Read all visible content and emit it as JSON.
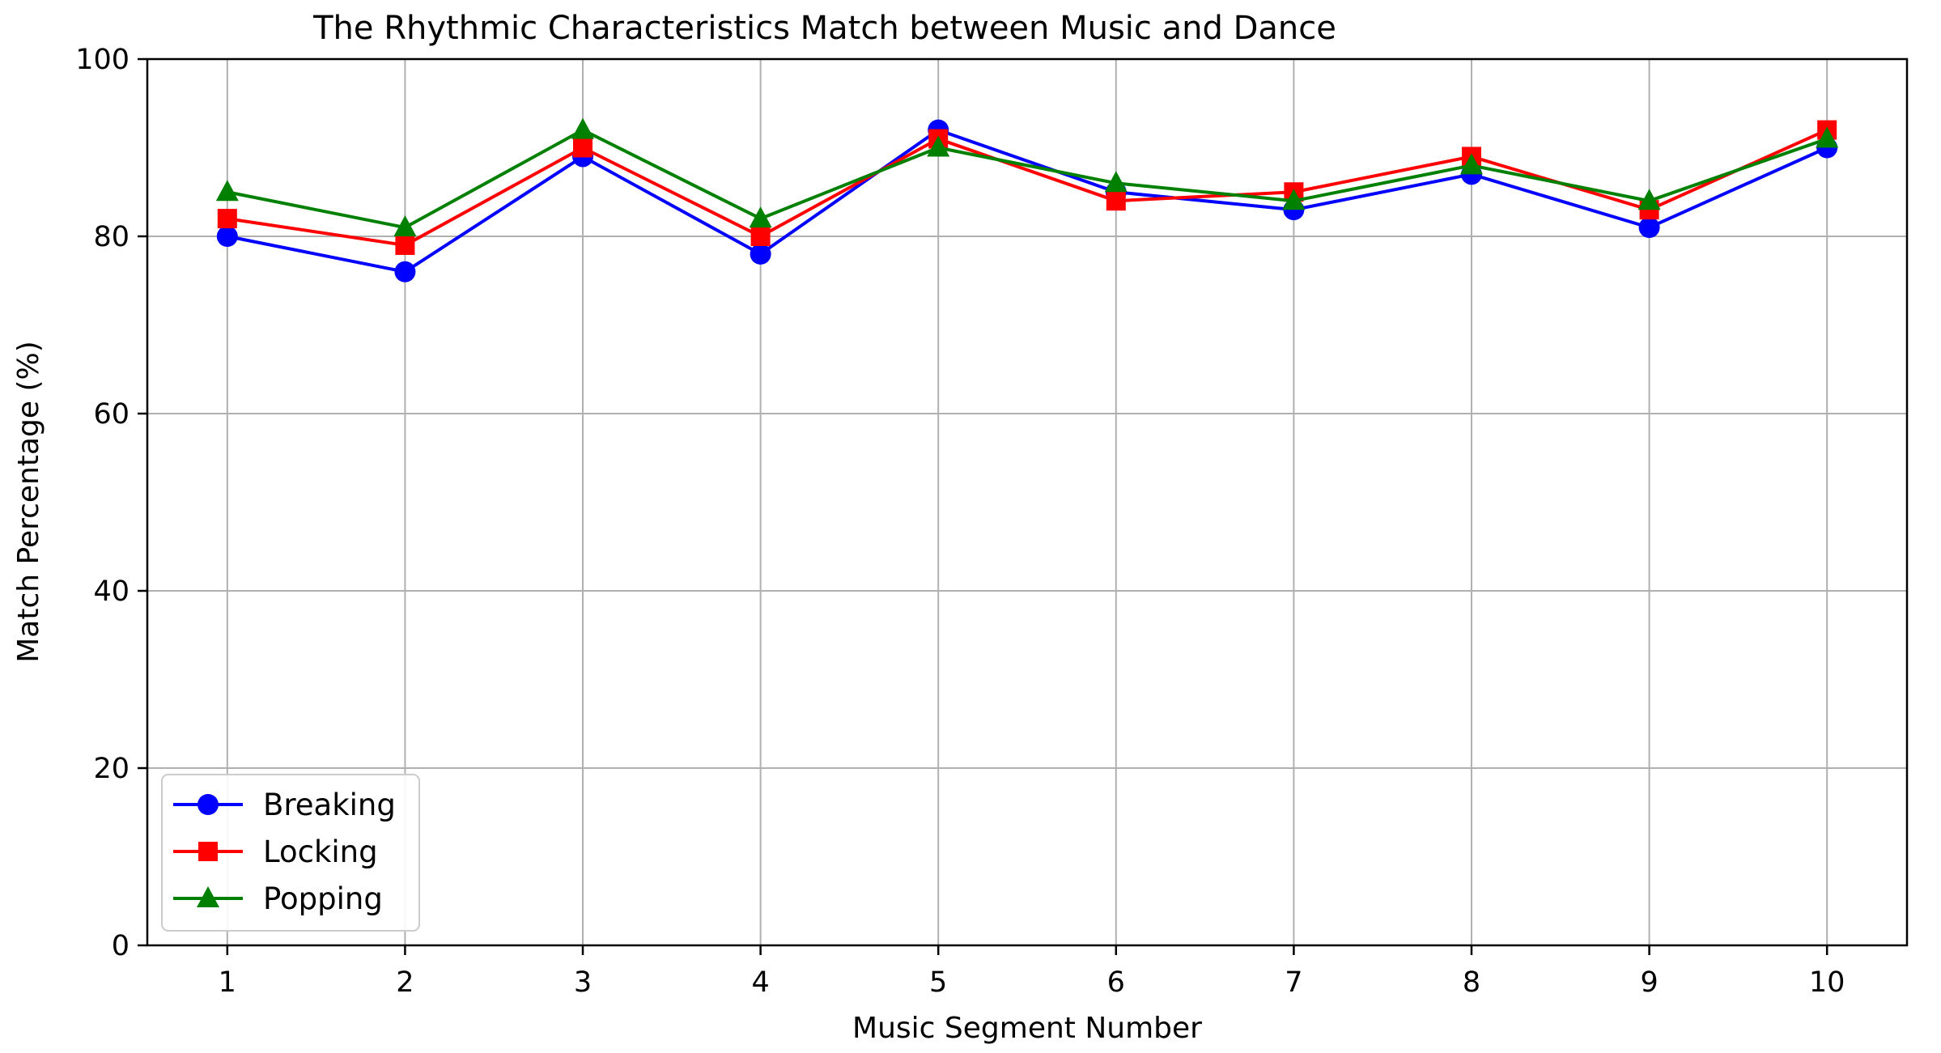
{
  "chart_data": {
    "type": "line",
    "title": "The Rhythmic Characteristics Match between Music and Dance",
    "xlabel": "Music Segment Number",
    "ylabel": "Match Percentage (%)",
    "x": [
      1,
      2,
      3,
      4,
      5,
      6,
      7,
      8,
      9,
      10
    ],
    "x_tick_labels": [
      "1",
      "2",
      "3",
      "4",
      "5",
      "6",
      "7",
      "8",
      "9",
      "10"
    ],
    "xlim": [
      0.55,
      10.45
    ],
    "ylim": [
      0,
      100
    ],
    "y_ticks": [
      0,
      20,
      40,
      60,
      80,
      100
    ],
    "y_tick_labels": [
      "0",
      "20",
      "40",
      "60",
      "80",
      "100"
    ],
    "grid": true,
    "legend_position": "lower-left",
    "series": [
      {
        "name": "Breaking",
        "color": "#0000ff",
        "marker": "circle",
        "values": [
          80,
          76,
          89,
          78,
          92,
          85,
          83,
          87,
          81,
          90
        ]
      },
      {
        "name": "Locking",
        "color": "#ff0000",
        "marker": "square",
        "values": [
          82,
          79,
          90,
          80,
          91,
          84,
          85,
          89,
          83,
          92
        ]
      },
      {
        "name": "Popping",
        "color": "#008000",
        "marker": "triangle",
        "values": [
          85,
          81,
          92,
          82,
          90,
          86,
          84,
          88,
          84,
          91
        ]
      }
    ]
  }
}
